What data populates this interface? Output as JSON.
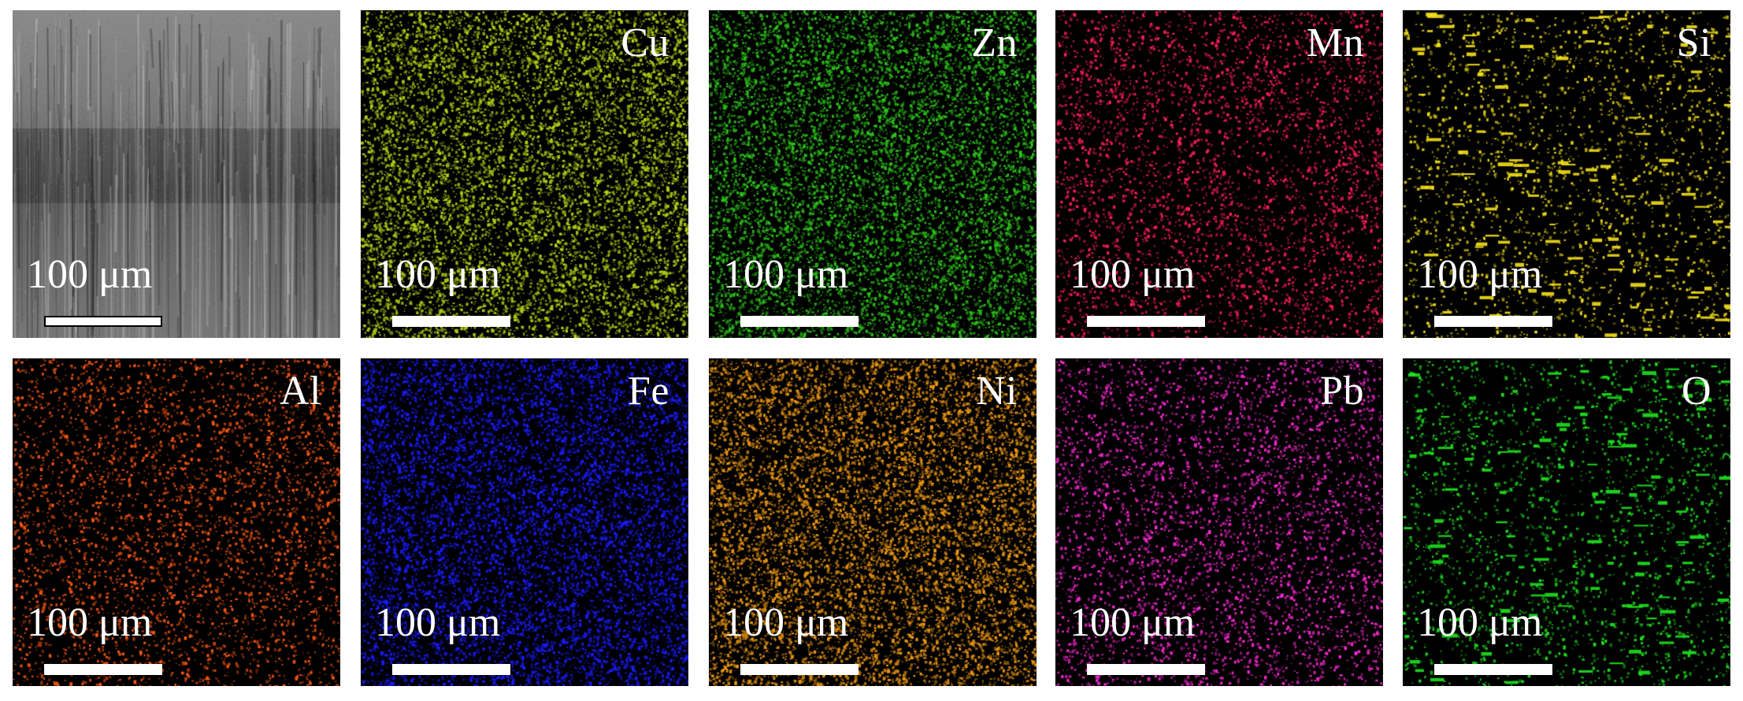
{
  "figure": {
    "scale_label": "100 μm",
    "panels": [
      {
        "id": "sem",
        "label": "",
        "kind": "sem"
      },
      {
        "id": "cu",
        "label": "Cu",
        "color": "#b7d319",
        "density": "high"
      },
      {
        "id": "zn",
        "label": "Zn",
        "color": "#2fc41b",
        "density": "high"
      },
      {
        "id": "mn",
        "label": "Mn",
        "color": "#ff1f5a",
        "density": "medium"
      },
      {
        "id": "si",
        "label": "Si",
        "color": "#f4e11a",
        "density": "low"
      },
      {
        "id": "al",
        "label": "Al",
        "color": "#ff5a12",
        "density": "medium"
      },
      {
        "id": "fe",
        "label": "Fe",
        "color": "#1a1cff",
        "density": "high"
      },
      {
        "id": "ni",
        "label": "Ni",
        "color": "#f09a14",
        "density": "high"
      },
      {
        "id": "pb",
        "label": "Pb",
        "color": "#ff2ad6",
        "density": "medium"
      },
      {
        "id": "o",
        "label": "O",
        "color": "#1fe31f",
        "density": "low"
      }
    ]
  }
}
